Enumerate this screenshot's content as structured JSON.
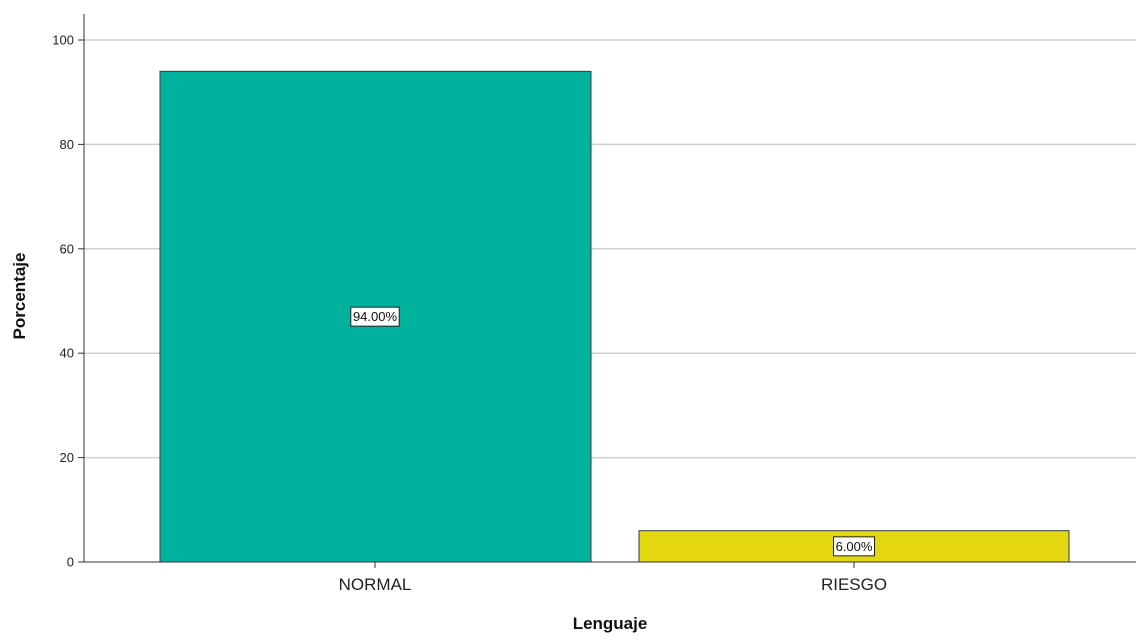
{
  "chart_data": {
    "type": "bar",
    "categories": [
      "NORMAL",
      "RIESGO"
    ],
    "values": [
      94.0,
      6.0
    ],
    "data_labels": [
      "94.00%",
      "6.00%"
    ],
    "bar_colors": [
      "#00b19e",
      "#e3d70f"
    ],
    "xlabel": "Lenguaje",
    "ylabel": "Porcentaje",
    "ylim": [
      0,
      100
    ],
    "yticks": [
      0,
      20,
      40,
      60,
      80,
      100
    ],
    "ytick_labels": [
      "0",
      "20",
      "40",
      "60",
      "80",
      "100"
    ],
    "grid": "horizontal",
    "legend": "none"
  }
}
